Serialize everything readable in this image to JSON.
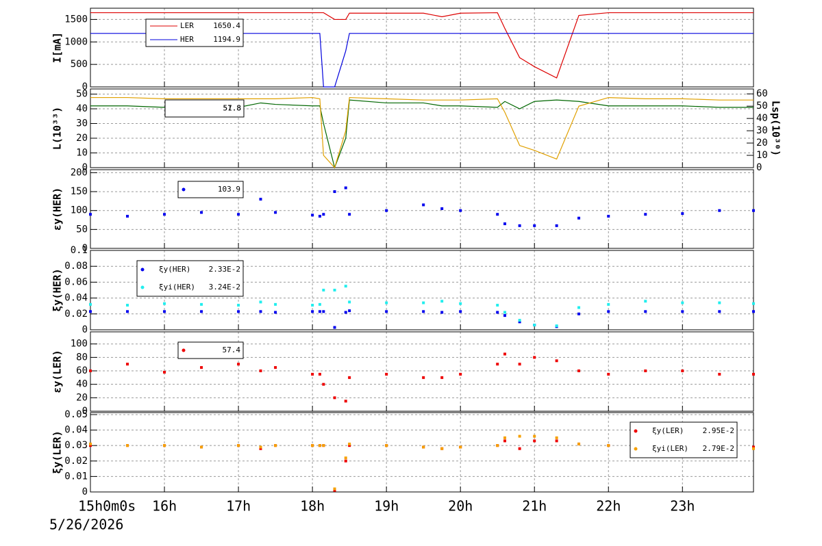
{
  "chart_data": [
    {
      "type": "line",
      "ylabel": "I[mA]",
      "xlim": [
        15,
        23.96
      ],
      "xticks": [
        16,
        17,
        18,
        19,
        20,
        21,
        22,
        23
      ],
      "ylim": [
        0,
        1750
      ],
      "yticks": [
        0,
        500,
        1000,
        1500
      ],
      "grid": true,
      "x": [
        15,
        15.5,
        16,
        16.5,
        17,
        17.3,
        17.5,
        18,
        18.1,
        18.15,
        18.3,
        18.45,
        18.5,
        19,
        19.5,
        19.75,
        20,
        20.5,
        20.6,
        20.8,
        21,
        21.3,
        21.6,
        22,
        22.5,
        23,
        23.5,
        23.96
      ],
      "series": [
        {
          "name": "LER",
          "legend_value": "1650.4",
          "color": "#dd0000",
          "values": [
            1650,
            1650,
            1650,
            1650,
            1650,
            1650,
            1650,
            1650,
            1650,
            1650,
            1500,
            1500,
            1640,
            1640,
            1640,
            1560,
            1640,
            1650,
            1300,
            650,
            450,
            200,
            1590,
            1650,
            1650,
            1650,
            1650,
            1650
          ]
        },
        {
          "name": "HER",
          "legend_value": "1194.9",
          "color": "#0000dd",
          "values": [
            1190,
            1190,
            1190,
            1190,
            1190,
            1190,
            1190,
            1190,
            1190,
            0,
            0,
            800,
            1190,
            1190,
            1190,
            1190,
            1190,
            1190,
            1190,
            1190,
            1190,
            1190,
            1190,
            1190,
            1190,
            1190,
            1190,
            1190
          ]
        }
      ]
    },
    {
      "type": "line",
      "ylabel": "L(10³³)",
      "y2label": "Lsp(10³⁰)",
      "xlim": [
        15,
        23.96
      ],
      "xticks": [
        16,
        17,
        18,
        19,
        20,
        21,
        22,
        23
      ],
      "ylim": [
        0,
        53.5
      ],
      "yticks": [
        0,
        10,
        20,
        30,
        40,
        50
      ],
      "y2lim": [
        0,
        64
      ],
      "y2ticks": [
        0,
        10,
        20,
        30,
        40,
        50,
        60
      ],
      "grid": true,
      "x": [
        15,
        15.5,
        16,
        16.5,
        17,
        17.3,
        17.5,
        18,
        18.1,
        18.15,
        18.3,
        18.45,
        18.5,
        19,
        19.5,
        19.75,
        20,
        20.5,
        20.6,
        20.8,
        21,
        21.3,
        21.6,
        22,
        22.5,
        23,
        23.5,
        23.96
      ],
      "series": [
        {
          "legend_value": "51.8",
          "color": "#006600",
          "values": [
            42,
            42,
            41,
            42,
            41,
            44,
            43,
            42,
            42,
            30,
            0,
            20,
            46,
            44,
            44,
            42,
            42,
            41,
            45,
            40,
            45,
            46,
            45,
            42,
            42,
            42,
            41,
            41
          ]
        },
        {
          "legend_value": "57.8",
          "color": "#e0a000",
          "axis": "y2",
          "values": [
            57,
            57,
            56,
            56,
            56,
            56,
            56,
            57,
            56,
            10,
            0,
            30,
            57,
            56,
            55,
            55,
            55,
            56,
            45,
            18,
            14,
            7,
            50,
            57,
            56,
            56,
            55,
            55
          ]
        }
      ]
    },
    {
      "type": "scatter",
      "ylabel": "εy(HER)",
      "xlim": [
        15,
        23.96
      ],
      "xticks": [
        16,
        17,
        18,
        19,
        20,
        21,
        22,
        23
      ],
      "ylim": [
        0,
        208
      ],
      "yticks": [
        0,
        50,
        100,
        150,
        200
      ],
      "grid": true,
      "x": [
        15,
        15.5,
        16,
        16.5,
        17,
        17.3,
        17.5,
        18,
        18.1,
        18.15,
        18.3,
        18.45,
        18.5,
        19,
        19.5,
        19.75,
        20,
        20.5,
        20.6,
        20.8,
        21,
        21.3,
        21.6,
        22,
        22.5,
        23,
        23.5,
        23.96
      ],
      "series": [
        {
          "legend_value": "103.9",
          "color": "#0000ee",
          "values": [
            90,
            85,
            90,
            95,
            90,
            130,
            95,
            88,
            85,
            90,
            150,
            160,
            90,
            100,
            115,
            105,
            100,
            90,
            65,
            60,
            60,
            60,
            80,
            85,
            90,
            92,
            100,
            100
          ]
        }
      ]
    },
    {
      "type": "scatter",
      "ylabel": "ξy(HER)",
      "xlim": [
        15,
        23.96
      ],
      "xticks": [
        16,
        17,
        18,
        19,
        20,
        21,
        22,
        23
      ],
      "ylim": [
        0,
        0.1
      ],
      "yticks": [
        0,
        0.02,
        0.04,
        0.06,
        0.08,
        0.1
      ],
      "grid": true,
      "x": [
        15,
        15.5,
        16,
        16.5,
        17,
        17.3,
        17.5,
        18,
        18.1,
        18.15,
        18.3,
        18.45,
        18.5,
        19,
        19.5,
        19.75,
        20,
        20.5,
        20.6,
        20.8,
        21,
        21.3,
        21.6,
        22,
        22.5,
        23,
        23.5,
        23.96
      ],
      "series": [
        {
          "name": "ξy(HER)",
          "legend_value": "2.33E-2",
          "color": "#0000ee",
          "values": [
            0.023,
            0.023,
            0.023,
            0.023,
            0.023,
            0.023,
            0.022,
            0.023,
            0.023,
            0.023,
            0.003,
            0.022,
            0.024,
            0.023,
            0.023,
            0.022,
            0.023,
            0.022,
            0.018,
            0.01,
            0.006,
            0.004,
            0.02,
            0.023,
            0.023,
            0.023,
            0.023,
            0.023
          ]
        },
        {
          "name": "ξyi(HER)",
          "legend_value": "3.24E-2",
          "color": "#22eeee",
          "values": [
            0.032,
            0.031,
            0.033,
            0.032,
            0.031,
            0.035,
            0.032,
            0.031,
            0.032,
            0.05,
            0.05,
            0.055,
            0.035,
            0.034,
            0.034,
            0.036,
            0.033,
            0.031,
            0.022,
            0.012,
            0.006,
            0.005,
            0.028,
            0.032,
            0.036,
            0.034,
            0.034,
            0.033
          ]
        }
      ]
    },
    {
      "type": "scatter",
      "ylabel": "εy(LER)",
      "xlim": [
        15,
        23.96
      ],
      "xticks": [
        16,
        17,
        18,
        19,
        20,
        21,
        22,
        23
      ],
      "ylim": [
        0,
        118
      ],
      "yticks": [
        0,
        20,
        40,
        60,
        80,
        100
      ],
      "grid": true,
      "x": [
        15,
        15.5,
        16,
        16.5,
        17,
        17.3,
        17.5,
        18,
        18.1,
        18.15,
        18.3,
        18.45,
        18.5,
        19,
        19.5,
        19.75,
        20,
        20.5,
        20.6,
        20.8,
        21,
        21.3,
        21.6,
        22,
        22.5,
        23,
        23.5,
        23.96
      ],
      "series": [
        {
          "legend_value": "57.4",
          "color": "#ee0000",
          "values": [
            60,
            70,
            58,
            65,
            70,
            60,
            65,
            55,
            55,
            40,
            20,
            15,
            50,
            55,
            50,
            50,
            55,
            70,
            85,
            70,
            80,
            75,
            60,
            55,
            60,
            60,
            55,
            55
          ]
        }
      ]
    },
    {
      "type": "scatter",
      "ylabel": "ξy(LER)",
      "xlabel": "5/26/2026",
      "xlim": [
        15,
        23.96
      ],
      "xticks": [
        {
          "value": 15,
          "label": "15h0m0s"
        },
        {
          "value": 16,
          "label": "16h"
        },
        {
          "value": 17,
          "label": "17h"
        },
        {
          "value": 18,
          "label": "18h"
        },
        {
          "value": 19,
          "label": "19h"
        },
        {
          "value": 20,
          "label": "20h"
        },
        {
          "value": 21,
          "label": "21h"
        },
        {
          "value": 22,
          "label": "22h"
        },
        {
          "value": 23,
          "label": "23h"
        }
      ],
      "ylim": [
        0,
        0.0513
      ],
      "yticks": [
        0,
        0.01,
        0.02,
        0.03,
        0.04,
        0.05
      ],
      "grid": true,
      "x": [
        15,
        15.5,
        16,
        16.5,
        17,
        17.3,
        17.5,
        18,
        18.1,
        18.15,
        18.3,
        18.45,
        18.5,
        19,
        19.5,
        19.75,
        20,
        20.5,
        20.6,
        20.8,
        21,
        21.3,
        21.6,
        22,
        22.5,
        23,
        23.5,
        23.96
      ],
      "series": [
        {
          "name": "ξy(LER)",
          "legend_value": "2.95E-2",
          "color": "#ee0000",
          "values": [
            0.03,
            0.03,
            0.03,
            0.029,
            0.03,
            0.028,
            0.03,
            0.03,
            0.03,
            0.03,
            0.001,
            0.02,
            0.03,
            0.03,
            0.029,
            0.028,
            0.029,
            0.03,
            0.033,
            0.028,
            0.033,
            0.033,
            0.031,
            0.03,
            0.03,
            0.03,
            0.029,
            0.029
          ]
        },
        {
          "name": "ξyi(LER)",
          "legend_value": "2.79E-2",
          "color": "#f5a000",
          "values": [
            0.031,
            0.03,
            0.03,
            0.029,
            0.03,
            0.029,
            0.03,
            0.03,
            0.03,
            0.03,
            0.002,
            0.022,
            0.031,
            0.03,
            0.029,
            0.028,
            0.029,
            0.03,
            0.035,
            0.036,
            0.036,
            0.035,
            0.031,
            0.03,
            0.031,
            0.03,
            0.029,
            0.028
          ]
        }
      ]
    }
  ]
}
